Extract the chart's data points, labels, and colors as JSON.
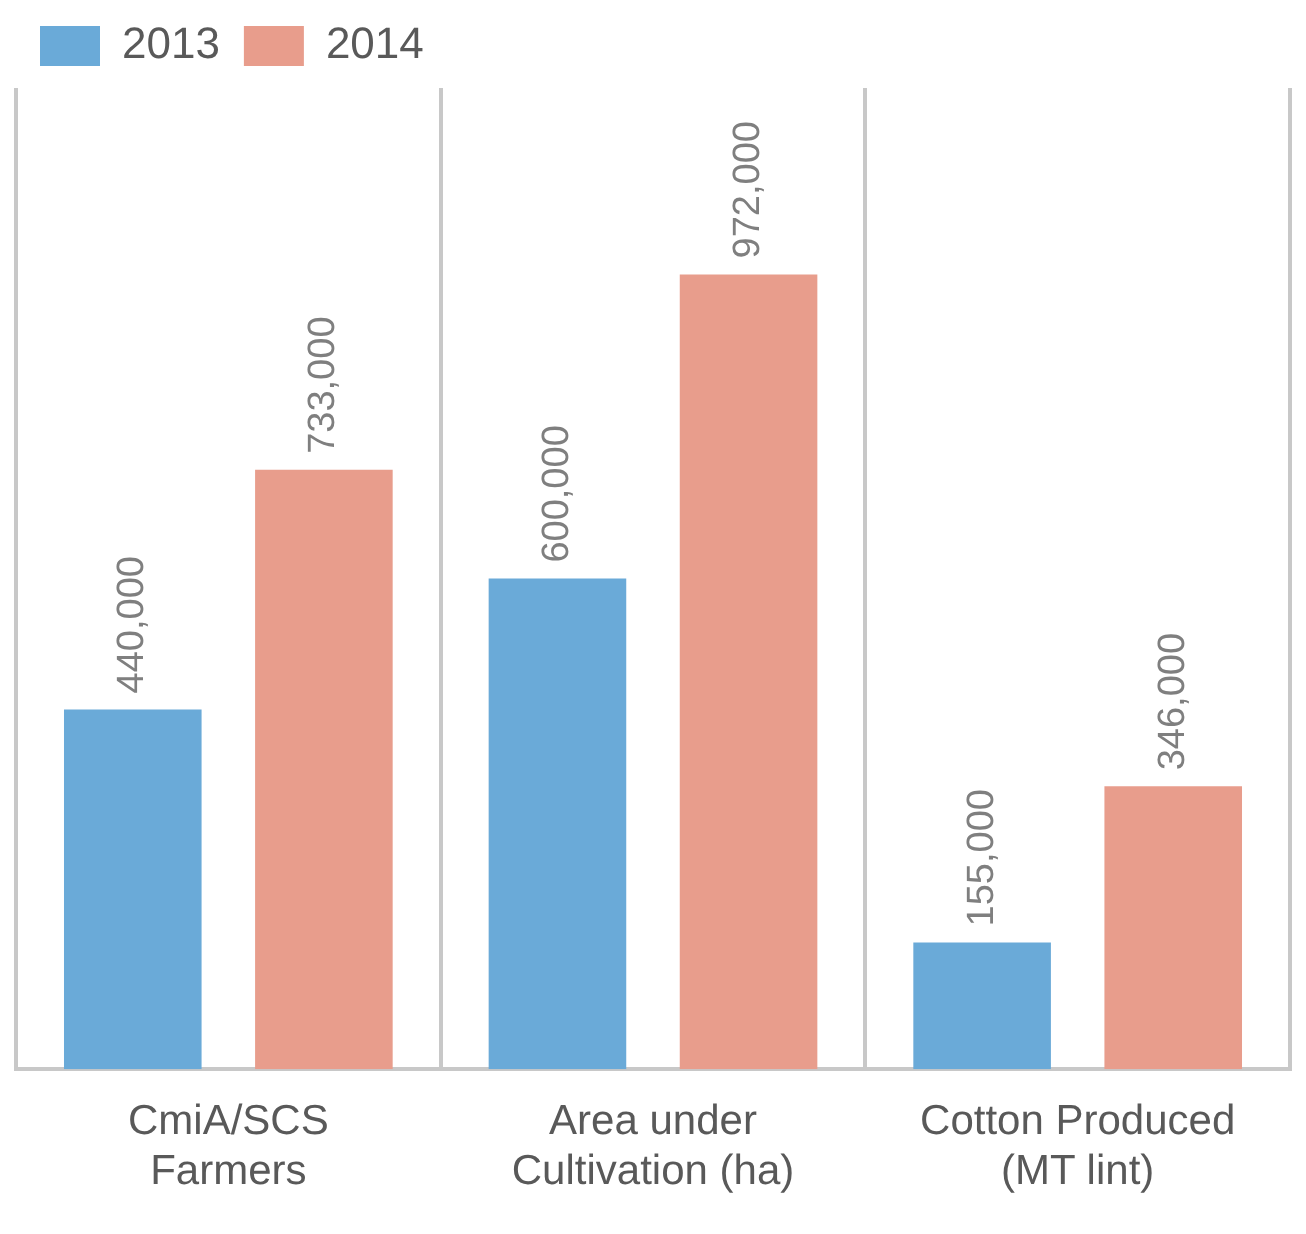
{
  "chart_data": {
    "type": "bar",
    "categories": [
      "CmiA/SCS Farmers",
      "Area under Cultivation (ha)",
      "Cotton Produced (MT lint)"
    ],
    "series": [
      {
        "name": "2013",
        "color": "#6aaad8",
        "values": [
          440000,
          600000,
          155000
        ],
        "value_labels": [
          "440,000",
          "600,000",
          "155,000"
        ]
      },
      {
        "name": "2014",
        "color": "#e89d8c",
        "values": [
          733000,
          972000,
          346000
        ],
        "value_labels": [
          "733,000",
          "972,000",
          "346,000"
        ]
      }
    ],
    "grid": "x",
    "legend": "top left"
  }
}
